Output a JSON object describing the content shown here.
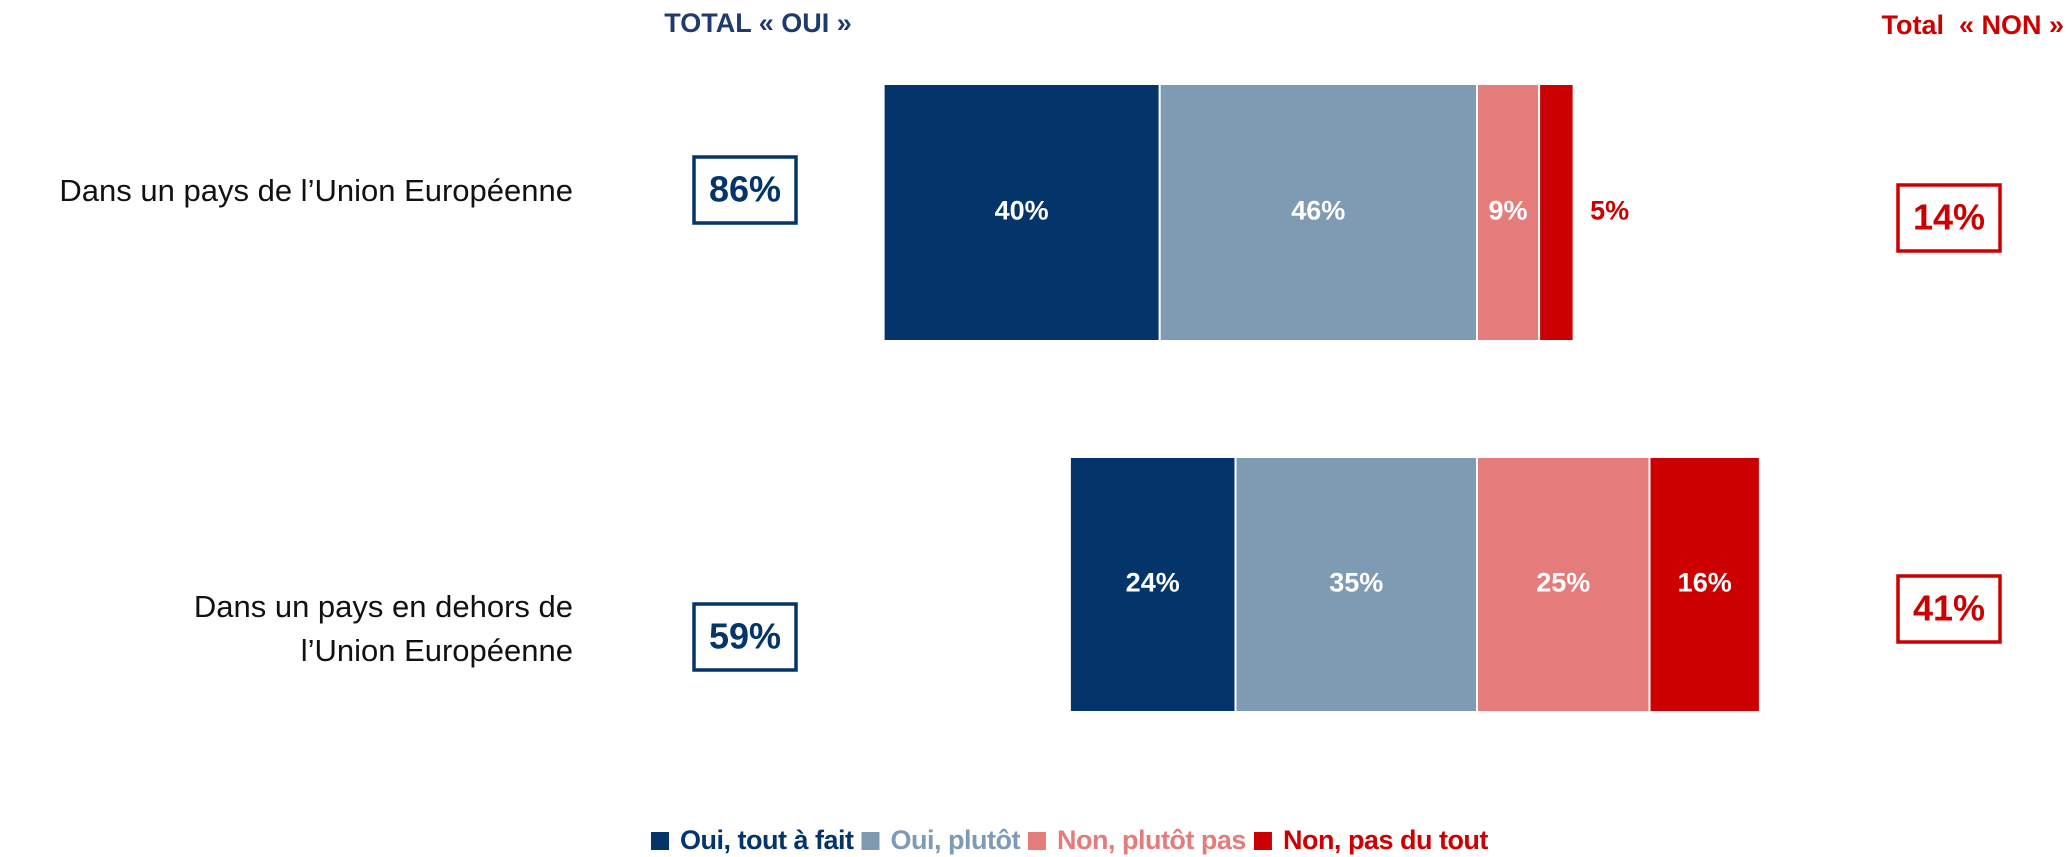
{
  "chart_data": {
    "type": "bar",
    "orientation": "horizontal",
    "stacking": "diverging",
    "header_left": "TOTAL « OUI »",
    "header_right": "Total  « NON »",
    "categories": [
      [
        "Dans un pays de l’Union Européenne"
      ],
      [
        "Dans un pays en dehors de",
        "l’Union Européenne"
      ]
    ],
    "series": [
      {
        "name": "Oui, tout à fait",
        "color": "#03356a",
        "side": "left",
        "values": [
          40,
          24
        ],
        "value_labels": [
          "40%",
          "24%"
        ]
      },
      {
        "name": "Oui, plutôt",
        "color": "#7f9ab3",
        "side": "left",
        "values": [
          46,
          35
        ],
        "value_labels": [
          "46%",
          "35%"
        ]
      },
      {
        "name": "Non, plutôt pas",
        "color": "#e57c7c",
        "side": "right",
        "values": [
          9,
          25
        ],
        "value_labels": [
          "9%",
          "25%"
        ]
      },
      {
        "name": "Non, pas du tout",
        "color": "#cc0000",
        "side": "right",
        "values": [
          5,
          16
        ],
        "value_labels": [
          "5%",
          "16%"
        ]
      }
    ],
    "total_oui": {
      "color": "#03356a",
      "values": [
        86,
        59
      ],
      "value_labels": [
        "86%",
        "59%"
      ]
    },
    "total_non": {
      "color": "#cc0000",
      "values": [
        14,
        41
      ],
      "value_labels": [
        "14%",
        "41%"
      ]
    },
    "legend": "bottom"
  }
}
